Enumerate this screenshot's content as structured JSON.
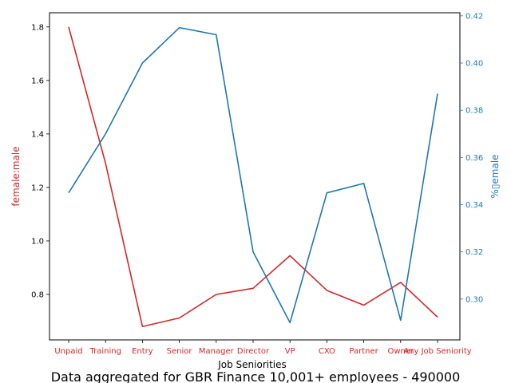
{
  "chart_data": {
    "type": "line",
    "categories": [
      "Unpaid",
      "Training",
      "Entry",
      "Senior",
      "Manager",
      "Director",
      "VP",
      "CXO",
      "Partner",
      "Owner",
      "Any Job Seniority"
    ],
    "xlabel": "Job Seniorities",
    "series": [
      {
        "name": "female:male",
        "axis": "left",
        "color": "#d62728",
        "values": [
          1.8,
          1.29,
          0.68,
          0.712,
          0.8,
          0.823,
          0.945,
          0.815,
          0.76,
          0.845,
          0.715
        ]
      },
      {
        "name": "%female",
        "axis": "right",
        "color": "#1f77b4",
        "values": [
          0.345,
          0.37,
          0.4,
          0.415,
          0.412,
          0.32,
          0.29,
          0.345,
          0.349,
          0.291,
          0.387
        ]
      }
    ],
    "y_left": {
      "label": "female:male",
      "color": "#d62728",
      "ticks": [
        "0.8",
        "1.0",
        "1.2",
        "1.4",
        "1.6",
        "1.8"
      ],
      "ylim": [
        0.63,
        1.853
      ]
    },
    "y_right": {
      "label": "%▯emale",
      "color": "#1f77b4",
      "ticks": [
        "0.30",
        "0.32",
        "0.34",
        "0.36",
        "0.38",
        "0.40",
        "0.42"
      ],
      "ylim": [
        0.2827,
        0.4213
      ]
    },
    "tick_label_color": "#d62728",
    "footer": "Data aggregated for GBR Finance 10,001+ employees - 490000"
  }
}
